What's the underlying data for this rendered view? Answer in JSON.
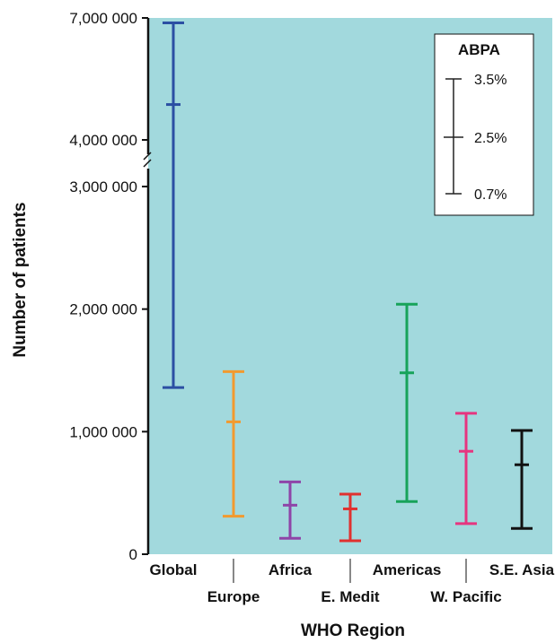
{
  "chart_data": {
    "type": "error_bar",
    "xlabel": "WHO Region",
    "ylabel": "Number of patients",
    "y_axis_break": [
      3000000,
      4000000
    ],
    "y_ticks": [
      {
        "value": 0,
        "label": "0"
      },
      {
        "value": 1000000,
        "label": "1,000 000"
      },
      {
        "value": 2000000,
        "label": "2,000 000"
      },
      {
        "value": 3000000,
        "label": "3,000 000"
      },
      {
        "value": 4000000,
        "label": "4,000 000"
      },
      {
        "value": 7000000,
        "label": "7,000 000"
      }
    ],
    "categories": [
      "Global",
      "Europe",
      "Africa",
      "E. Medit",
      "Americas",
      "W. Pacific",
      "S.E. Asia"
    ],
    "series": [
      {
        "category": "Global",
        "low": 1360000,
        "mid": 4870000,
        "high": 6880000,
        "color": "#2b4fa3"
      },
      {
        "category": "Europe",
        "low": 310000,
        "mid": 1080000,
        "high": 1490000,
        "color": "#f29a2e"
      },
      {
        "category": "Africa",
        "low": 130000,
        "mid": 400000,
        "high": 590000,
        "color": "#8e44a8"
      },
      {
        "category": "E. Medit",
        "low": 110000,
        "mid": 370000,
        "high": 490000,
        "color": "#e0312f"
      },
      {
        "category": "Americas",
        "low": 430000,
        "mid": 1480000,
        "high": 2040000,
        "color": "#17a35a"
      },
      {
        "category": "W. Pacific",
        "low": 250000,
        "mid": 840000,
        "high": 1150000,
        "color": "#e6357f"
      },
      {
        "category": "S.E. Asia",
        "low": 210000,
        "mid": 730000,
        "high": 1010000,
        "color": "#111111"
      }
    ],
    "legend": {
      "title": "ABPA",
      "placement": "top-right",
      "labels": {
        "high": "3.5%",
        "mid": "2.5%",
        "low": "0.7%"
      }
    },
    "background_color": "#a2d9dd"
  }
}
